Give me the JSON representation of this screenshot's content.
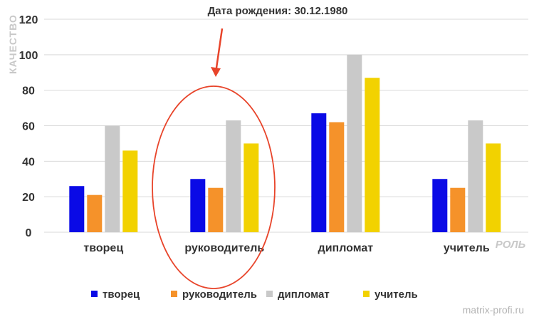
{
  "chart_data": {
    "type": "bar",
    "title": "Дата рождения: 30.12.1980",
    "ylabel": "КАЧЕСТВО",
    "xlabel": "РОЛЬ",
    "ylim": [
      0,
      120
    ],
    "yticks": [
      0,
      20,
      40,
      60,
      80,
      100,
      120
    ],
    "grid": true,
    "legend_position": "bottom",
    "categories": [
      "творец",
      "руководитель",
      "дипломат",
      "учитель"
    ],
    "series": [
      {
        "name": "творец",
        "color": "#0a0ae6",
        "values": [
          26,
          30,
          67,
          30
        ]
      },
      {
        "name": "руководитель",
        "color": "#f5922a",
        "values": [
          21,
          25,
          62,
          25
        ]
      },
      {
        "name": "дипломат",
        "color": "#c9c9c9",
        "values": [
          60,
          63,
          100,
          63
        ]
      },
      {
        "name": "учитель",
        "color": "#f2d200",
        "values": [
          46,
          50,
          87,
          50
        ]
      }
    ],
    "annotation_color": "#e8442a"
  },
  "watermark": "matrix-profi.ru"
}
